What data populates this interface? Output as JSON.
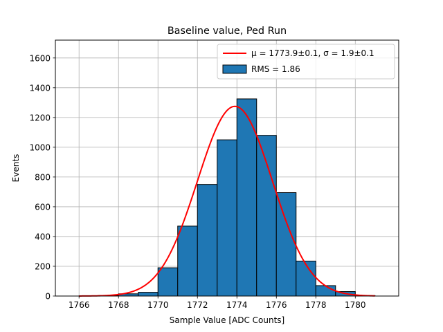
{
  "chart_data": {
    "type": "bar",
    "title": "Baseline value, Ped Run",
    "xlabel": "Sample Value [ADC Counts]",
    "ylabel": "Events",
    "xlim": [
      1764.8,
      1782.2
    ],
    "ylim": [
      0,
      1720
    ],
    "xticks": [
      1766,
      1768,
      1770,
      1772,
      1774,
      1776,
      1778,
      1780
    ],
    "yticks": [
      0,
      200,
      400,
      600,
      800,
      1000,
      1200,
      1400,
      1600
    ],
    "grid": true,
    "bin_width": 1.0,
    "bins": [
      {
        "left": 1766.0,
        "value": 1
      },
      {
        "left": 1767.0,
        "value": 4
      },
      {
        "left": 1768.0,
        "value": 15
      },
      {
        "left": 1769.0,
        "value": 25
      },
      {
        "left": 1770.0,
        "value": 190
      },
      {
        "left": 1771.0,
        "value": 470
      },
      {
        "left": 1772.0,
        "value": 750
      },
      {
        "left": 1773.0,
        "value": 1050
      },
      {
        "left": 1774.0,
        "value": 1325
      },
      {
        "left": 1775.0,
        "value": 1080
      },
      {
        "left": 1776.0,
        "value": 695
      },
      {
        "left": 1777.0,
        "value": 235
      },
      {
        "left": 1778.0,
        "value": 70
      },
      {
        "left": 1779.0,
        "value": 30
      },
      {
        "left": 1780.0,
        "value": 3
      }
    ],
    "fit": {
      "mu": 1773.9,
      "sigma": 1.9,
      "amplitude": 1275,
      "x_range": [
        1766,
        1781
      ],
      "color": "#ff0000"
    },
    "bar_color": "#1f77b4",
    "legend": {
      "position": "top-right",
      "entries": [
        {
          "label": "μ = 1773.9±0.1, σ = 1.9±0.1",
          "kind": "line",
          "color": "#ff0000"
        },
        {
          "label": "RMS = 1.86",
          "kind": "patch",
          "color": "#1f77b4"
        }
      ]
    }
  }
}
